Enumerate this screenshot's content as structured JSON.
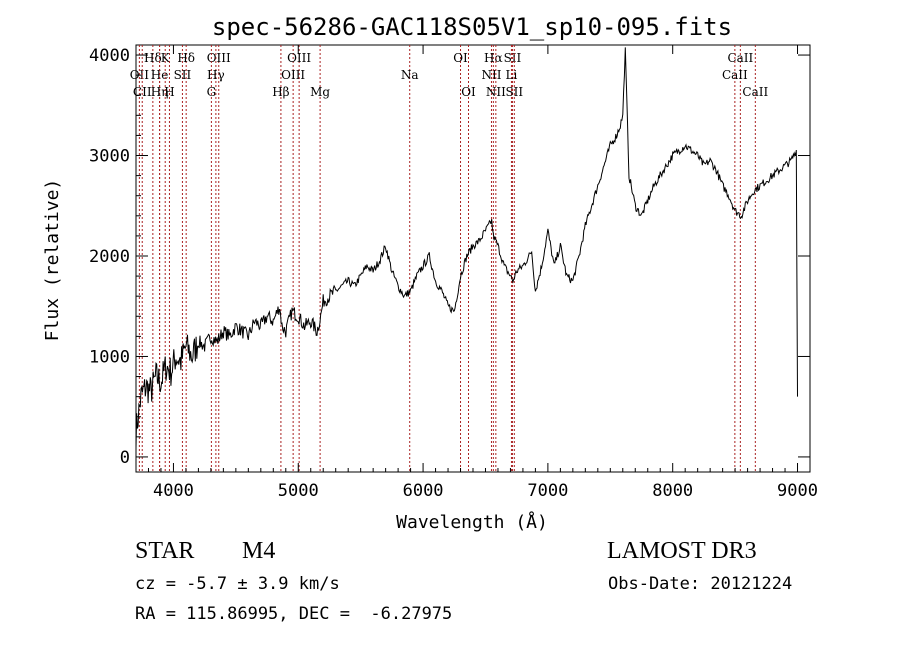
{
  "chart_data": {
    "type": "line",
    "title": "spec-56286-GAC118S05V1_sp10-095.fits",
    "xlabel": "Wavelength (Å)",
    "ylabel": "Flux (relative)",
    "xlim": [
      3700,
      9100
    ],
    "ylim": [
      -150,
      4100
    ],
    "xticks": [
      4000,
      5000,
      6000,
      7000,
      8000,
      9000
    ],
    "yticks": [
      0,
      1000,
      2000,
      3000,
      4000
    ],
    "line_color": "#000000",
    "marker_color": "#aa2222",
    "series": [
      {
        "name": "spectrum",
        "x": [
          3700,
          3740,
          3780,
          3820,
          3860,
          3900,
          3940,
          3980,
          4020,
          4060,
          4100,
          4150,
          4200,
          4250,
          4300,
          4350,
          4400,
          4450,
          4500,
          4550,
          4600,
          4650,
          4700,
          4750,
          4800,
          4850,
          4870,
          4900,
          4950,
          5000,
          5050,
          5100,
          5150,
          5180,
          5200,
          5250,
          5300,
          5350,
          5400,
          5450,
          5500,
          5550,
          5600,
          5650,
          5700,
          5750,
          5800,
          5850,
          5900,
          5950,
          6000,
          6050,
          6100,
          6150,
          6200,
          6250,
          6300,
          6350,
          6400,
          6450,
          6500,
          6550,
          6563,
          6600,
          6650,
          6700,
          6720,
          6750,
          6800,
          6850,
          6870,
          6900,
          6950,
          7000,
          7050,
          7100,
          7150,
          7200,
          7250,
          7300,
          7350,
          7400,
          7450,
          7500,
          7550,
          7580,
          7600,
          7620,
          7650,
          7700,
          7750,
          7800,
          7850,
          7900,
          7950,
          8000,
          8050,
          8100,
          8150,
          8200,
          8250,
          8300,
          8350,
          8400,
          8450,
          8500,
          8550,
          8600,
          8650,
          8700,
          8750,
          8800,
          8850,
          8900,
          8950,
          8990,
          9000
        ],
        "y": [
          250,
          600,
          700,
          650,
          800,
          750,
          900,
          850,
          1000,
          950,
          1100,
          1000,
          1150,
          1100,
          1200,
          1150,
          1250,
          1200,
          1300,
          1250,
          1200,
          1350,
          1300,
          1400,
          1350,
          1500,
          1300,
          1250,
          1450,
          1400,
          1300,
          1350,
          1250,
          1400,
          1550,
          1600,
          1650,
          1700,
          1750,
          1700,
          1800,
          1900,
          1850,
          1950,
          2100,
          1850,
          1700,
          1600,
          1650,
          1800,
          1900,
          2000,
          1750,
          1650,
          1500,
          1450,
          1800,
          2000,
          2100,
          2150,
          2250,
          2350,
          2200,
          2100,
          1900,
          1800,
          1750,
          1850,
          1900,
          2000,
          2050,
          1650,
          1900,
          2250,
          1900,
          2100,
          1800,
          1750,
          2000,
          2300,
          2500,
          2700,
          2900,
          3100,
          3200,
          3300,
          3400,
          4050,
          2800,
          2500,
          2400,
          2550,
          2700,
          2800,
          2900,
          3000,
          3050,
          3100,
          3050,
          3000,
          2900,
          2950,
          2850,
          2700,
          2600,
          2450,
          2400,
          2550,
          2650,
          2700,
          2750,
          2800,
          2850,
          2900,
          2950,
          3050,
          600
        ]
      }
    ],
    "lines": [
      {
        "name": "Hδ",
        "wavelength": 3835,
        "row": 1
      },
      {
        "name": "OII",
        "wavelength": 3727,
        "row": 2
      },
      {
        "name": "CII",
        "wavelength": 3750,
        "row": 3
      },
      {
        "name": "He",
        "wavelength": 3889,
        "row": 2
      },
      {
        "name": "Hη",
        "wavelength": 3889,
        "row": 3
      },
      {
        "name": "K",
        "wavelength": 3934,
        "row": 1
      },
      {
        "name": "H",
        "wavelength": 3968,
        "row": 3
      },
      {
        "name": "SII",
        "wavelength": 4072,
        "row": 2
      },
      {
        "name": "Hδ",
        "wavelength": 4102,
        "row": 1
      },
      {
        "name": "OIII",
        "wavelength": 4363,
        "row": 1
      },
      {
        "name": "Hγ",
        "wavelength": 4340,
        "row": 2
      },
      {
        "name": "G",
        "wavelength": 4304,
        "row": 3
      },
      {
        "name": "Hβ",
        "wavelength": 4861,
        "row": 3
      },
      {
        "name": "OIII",
        "wavelength": 4959,
        "row": 2
      },
      {
        "name": "OIII",
        "wavelength": 5007,
        "row": 1
      },
      {
        "name": "Mg",
        "wavelength": 5175,
        "row": 3
      },
      {
        "name": "Na",
        "wavelength": 5893,
        "row": 2
      },
      {
        "name": "OI",
        "wavelength": 6300,
        "row": 1
      },
      {
        "name": "OI",
        "wavelength": 6364,
        "row": 3
      },
      {
        "name": "NII",
        "wavelength": 6548,
        "row": 2
      },
      {
        "name": "Hα",
        "wavelength": 6563,
        "row": 1
      },
      {
        "name": "NII",
        "wavelength": 6583,
        "row": 3
      },
      {
        "name": "SII",
        "wavelength": 6716,
        "row": 1
      },
      {
        "name": "Li",
        "wavelength": 6708,
        "row": 2
      },
      {
        "name": "SII",
        "wavelength": 6731,
        "row": 3
      },
      {
        "name": "CaII",
        "wavelength": 8542,
        "row": 1
      },
      {
        "name": "CaII",
        "wavelength": 8498,
        "row": 2
      },
      {
        "name": "CaII",
        "wavelength": 8662,
        "row": 3
      }
    ]
  },
  "info": {
    "object_class": "STAR",
    "subclass": "M4",
    "survey": "LAMOST DR3",
    "redshift": "cz = -5.7 ± 3.9 km/s",
    "obs_date": "Obs-Date: 20121224",
    "coords": "RA = 115.86995, DEC =  -6.27975"
  }
}
